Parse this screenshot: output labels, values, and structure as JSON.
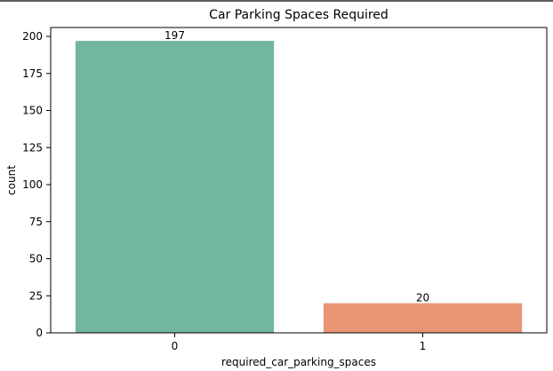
{
  "chart_data": {
    "type": "bar",
    "title": "Car Parking Spaces Required",
    "xlabel": "required_car_parking_spaces",
    "ylabel": "count",
    "categories": [
      "0",
      "1"
    ],
    "values": [
      197,
      20
    ],
    "data_labels": [
      "197",
      "20"
    ],
    "colors": [
      "#72b6a1",
      "#e99675"
    ],
    "ylim": [
      0,
      206
    ],
    "yticks": [
      0,
      25,
      50,
      75,
      100,
      125,
      150,
      175,
      200
    ],
    "grid": false,
    "legend": "none"
  }
}
